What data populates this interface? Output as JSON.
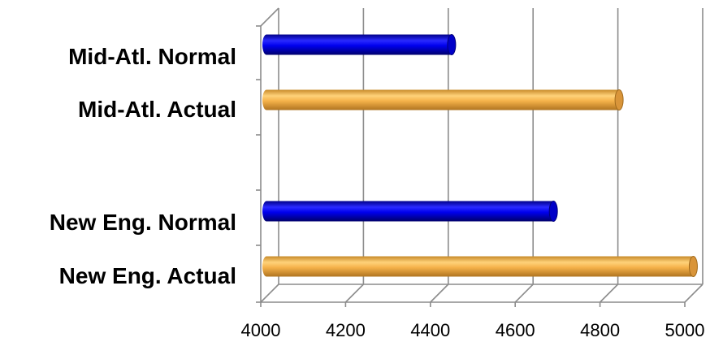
{
  "chart_data": {
    "type": "bar",
    "orientation": "horizontal",
    "style": "3d-cylinder",
    "categories": [
      "Mid-Atl. Normal",
      "Mid-Atl. Actual",
      "New Eng. Normal",
      "New Eng. Actual"
    ],
    "values": [
      4450,
      4845,
      4690,
      5020
    ],
    "bar_colors": [
      "#0000ee",
      "#f5b24a",
      "#0000ee",
      "#f5b24a"
    ],
    "xlim": [
      4000,
      5000
    ],
    "x_ticks": [
      "4000",
      "4200",
      "4400",
      "4600",
      "4800",
      "5000"
    ],
    "grid": true,
    "legend": "none",
    "title": "",
    "xlabel": "",
    "ylabel": ""
  }
}
